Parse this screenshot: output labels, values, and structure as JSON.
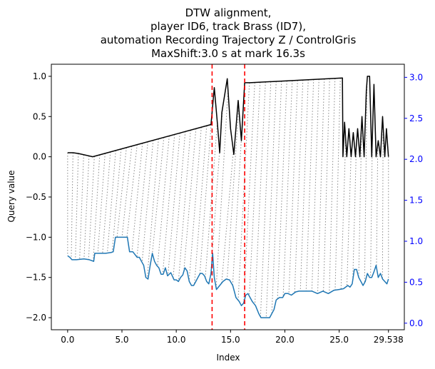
{
  "chart_data": {
    "type": "line",
    "title": [
      "DTW alignment,",
      "player ID6, track Brass (ID7),",
      "automation Recording Trajectory Z / ControlGris",
      "MaxShift:3.0 s at mark 16.3s"
    ],
    "xlabel": "Index",
    "ylabel": "Query value",
    "xlim": [
      -1.5,
      31.0
    ],
    "ylim": [
      -2.15,
      1.15
    ],
    "y2lim": [
      -0.08,
      3.16
    ],
    "xticks": [
      0.0,
      5.0,
      10.0,
      15.0,
      20.0,
      25.0,
      29.538
    ],
    "xtick_labels": [
      "0.0",
      "5.0",
      "10.0",
      "15.0",
      "20.0",
      "25.0",
      "29.538"
    ],
    "yticks": [
      1.0,
      0.5,
      0.0,
      -0.5,
      -1.0,
      -1.5,
      -2.0
    ],
    "ytick_labels": [
      "1.0",
      "0.5",
      "0.0",
      "−0.5",
      "−1.0",
      "−1.5",
      "−2.0"
    ],
    "y2ticks": [
      3.0,
      2.5,
      2.0,
      1.5,
      1.0,
      0.5,
      0.0
    ],
    "y2tick_labels": [
      "3.0",
      "2.5",
      "2.0",
      "1.5",
      "1.0",
      "0.5",
      "0.0"
    ],
    "vlines": [
      13.3,
      16.3
    ],
    "vline_color": "#ff0000",
    "series": [
      {
        "color": "#000000",
        "axis": "left",
        "x": [
          0.0,
          0.5,
          1.0,
          2.3,
          13.2,
          13.5,
          13.8,
          14.0,
          14.2,
          14.7,
          15.0,
          15.3,
          15.7,
          16.0,
          16.3,
          16.8,
          25.3,
          25.35,
          25.5,
          25.7,
          25.9,
          26.1,
          26.3,
          26.5,
          26.7,
          26.9,
          27.1,
          27.3,
          27.5,
          27.6,
          27.8,
          28.0,
          28.2,
          28.4,
          28.6,
          28.8,
          29.0,
          29.2,
          29.35,
          29.538
        ],
        "y": [
          0.05,
          0.05,
          0.04,
          0.0,
          0.4,
          0.86,
          0.4,
          0.05,
          0.55,
          0.97,
          0.35,
          0.03,
          0.7,
          0.2,
          0.92,
          0.92,
          0.98,
          0.0,
          0.43,
          0.0,
          0.35,
          0.0,
          0.3,
          0.0,
          0.35,
          0.0,
          0.5,
          0.0,
          0.82,
          1.0,
          1.0,
          0.0,
          0.9,
          0.0,
          0.2,
          0.0,
          0.5,
          0.0,
          0.35,
          0.0
        ]
      },
      {
        "color": "#1f77b4",
        "axis": "left",
        "x": [
          0.0,
          0.2,
          0.4,
          0.8,
          1.5,
          2.0,
          2.4,
          2.5,
          3.0,
          3.5,
          4.0,
          4.2,
          4.4,
          5.5,
          5.7,
          6.0,
          6.4,
          6.6,
          6.8,
          7.0,
          7.2,
          7.4,
          7.6,
          7.8,
          8.0,
          8.2,
          8.4,
          8.6,
          8.8,
          9.0,
          9.2,
          9.5,
          9.8,
          10.0,
          10.2,
          10.4,
          10.6,
          10.8,
          11.0,
          11.2,
          11.4,
          11.6,
          11.8,
          12.0,
          12.2,
          12.4,
          12.6,
          12.8,
          13.0,
          13.2,
          13.35,
          13.5,
          13.7,
          14.0,
          14.3,
          14.6,
          14.9,
          15.2,
          15.5,
          15.8,
          16.0,
          16.2,
          16.4,
          16.6,
          16.8,
          17.0,
          17.3,
          17.6,
          17.8,
          18.0,
          18.3,
          18.6,
          19.0,
          19.2,
          19.5,
          19.8,
          20.0,
          20.3,
          20.6,
          21.0,
          21.3,
          21.6,
          22.0,
          22.5,
          23.0,
          23.5,
          24.0,
          24.5,
          25.0,
          25.4,
          25.8,
          26.0,
          26.2,
          26.4,
          26.6,
          26.8,
          27.0,
          27.2,
          27.4,
          27.6,
          27.8,
          28.0,
          28.2,
          28.4,
          28.6,
          28.8,
          29.0,
          29.2,
          29.4,
          29.538
        ],
        "y": [
          -1.23,
          -1.25,
          -1.28,
          -1.28,
          -1.27,
          -1.28,
          -1.3,
          -1.2,
          -1.2,
          -1.2,
          -1.19,
          -1.18,
          -1.0,
          -1.0,
          -1.18,
          -1.18,
          -1.25,
          -1.25,
          -1.3,
          -1.35,
          -1.5,
          -1.52,
          -1.35,
          -1.2,
          -1.3,
          -1.35,
          -1.38,
          -1.46,
          -1.46,
          -1.38,
          -1.48,
          -1.44,
          -1.53,
          -1.53,
          -1.55,
          -1.5,
          -1.47,
          -1.38,
          -1.42,
          -1.55,
          -1.6,
          -1.6,
          -1.55,
          -1.5,
          -1.45,
          -1.45,
          -1.48,
          -1.55,
          -1.58,
          -1.45,
          -1.2,
          -1.5,
          -1.65,
          -1.6,
          -1.55,
          -1.52,
          -1.53,
          -1.6,
          -1.75,
          -1.8,
          -1.85,
          -1.82,
          -1.72,
          -1.7,
          -1.75,
          -1.8,
          -1.85,
          -1.95,
          -2.0,
          -2.0,
          -2.0,
          -2.0,
          -1.9,
          -1.78,
          -1.75,
          -1.75,
          -1.7,
          -1.7,
          -1.72,
          -1.68,
          -1.67,
          -1.67,
          -1.67,
          -1.67,
          -1.7,
          -1.67,
          -1.7,
          -1.66,
          -1.65,
          -1.64,
          -1.6,
          -1.62,
          -1.58,
          -1.4,
          -1.4,
          -1.5,
          -1.55,
          -1.6,
          -1.55,
          -1.45,
          -1.5,
          -1.5,
          -1.43,
          -1.35,
          -1.5,
          -1.45,
          -1.52,
          -1.55,
          -1.58,
          -1.52
        ]
      }
    ],
    "grid": false
  }
}
